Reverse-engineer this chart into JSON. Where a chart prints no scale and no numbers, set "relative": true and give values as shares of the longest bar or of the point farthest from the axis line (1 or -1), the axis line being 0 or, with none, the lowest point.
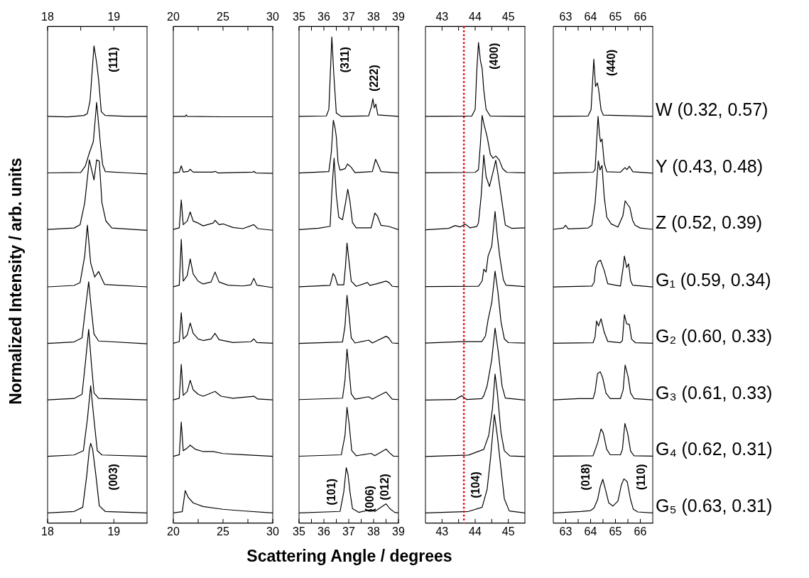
{
  "chart_data": [
    {
      "type": "line",
      "relative": true,
      "ylabel": "Normalized Intensity / arb. units",
      "xlim": [
        18,
        19.5
      ],
      "xticks": [
        18,
        {
          "value": 18.5,
          "label": null
        },
        19
      ],
      "x2lim": [
        18,
        19.5
      ],
      "x2ticks": [
        18,
        {
          "value": 18.5,
          "label": null
        },
        19
      ],
      "annotations": [
        "(111)",
        "(003)"
      ],
      "series": [
        {
          "color": "#000000",
          "x": [
            18,
            18.3,
            18.55,
            18.6,
            18.64,
            18.7,
            18.74,
            18.77,
            18.81,
            18.87,
            19.2,
            19.5
          ],
          "values": [
            0.849,
            0.848,
            0.851,
            0.855,
            0.882,
            1,
            0.964,
            0.927,
            0.859,
            0.851,
            0.849,
            0.849
          ]
        },
        {
          "color": "#000000",
          "x": [
            18,
            18.5,
            18.57,
            18.63,
            18.69,
            18.74,
            18.8,
            18.83,
            18.87,
            19.2,
            19.5
          ],
          "values": [
            0.728,
            0.729,
            0.743,
            0.771,
            0.795,
            0.879,
            0.785,
            0.746,
            0.731,
            0.728,
            0.726
          ]
        },
        {
          "color": "#000000",
          "x": [
            18,
            18.4,
            18.49,
            18.56,
            18.63,
            18.7,
            18.74,
            18.78,
            18.82,
            18.88,
            18.97,
            19.5
          ],
          "values": [
            0.607,
            0.61,
            0.617,
            0.664,
            0.756,
            0.713,
            0.756,
            0.753,
            0.664,
            0.625,
            0.61,
            0.605
          ]
        },
        {
          "color": "#000000",
          "x": [
            18,
            18.4,
            18.49,
            18.56,
            18.6,
            18.65,
            18.71,
            18.77,
            18.81,
            18.86,
            19.5
          ],
          "values": [
            0.484,
            0.487,
            0.493,
            0.55,
            0.616,
            0.535,
            0.505,
            0.517,
            0.504,
            0.489,
            0.484
          ]
        },
        {
          "color": "#000000",
          "x": [
            18,
            18.4,
            18.52,
            18.57,
            18.62,
            18.66,
            18.7,
            18.77,
            19.5
          ],
          "values": [
            0.363,
            0.366,
            0.375,
            0.436,
            0.495,
            0.436,
            0.383,
            0.368,
            0.362
          ]
        },
        {
          "color": "#000000",
          "x": [
            18,
            18.4,
            18.52,
            18.57,
            18.62,
            18.66,
            18.7,
            18.77,
            19.5
          ],
          "values": [
            0.242,
            0.245,
            0.254,
            0.321,
            0.393,
            0.321,
            0.257,
            0.245,
            0.242
          ]
        },
        {
          "color": "#000000",
          "x": [
            18,
            18.4,
            18.54,
            18.6,
            18.65,
            18.7,
            18.75,
            18.82,
            19.5
          ],
          "values": [
            0.121,
            0.124,
            0.133,
            0.2,
            0.272,
            0.2,
            0.133,
            0.124,
            0.121
          ]
        },
        {
          "color": "#000000",
          "x": [
            18,
            18.4,
            18.53,
            18.59,
            18.63,
            18.65,
            18.68,
            18.73,
            18.78,
            18.87,
            19.5
          ],
          "values": [
            0,
            0.003,
            0.012,
            0.079,
            0.136,
            0.149,
            0.136,
            0.079,
            0.015,
            0.003,
            0
          ]
        }
      ]
    },
    {
      "type": "line",
      "relative": true,
      "xlim": [
        20,
        30
      ],
      "xticks": [
        20,
        {
          "value": 22.5,
          "label": null
        },
        25,
        {
          "value": 27.5,
          "label": null
        },
        30
      ],
      "x2lim": [
        20,
        30
      ],
      "x2ticks": [
        20,
        {
          "value": 22.5,
          "label": null
        },
        25,
        {
          "value": 27.5,
          "label": null
        },
        30
      ],
      "series": [
        {
          "color": "#000000",
          "x": [
            20,
            21.2,
            21.3,
            21.4,
            25,
            30
          ],
          "values": [
            0.996,
            0.996,
            1,
            0.996,
            0.995,
            0.995
          ]
        },
        {
          "color": "#000000",
          "x": [
            20,
            20.6,
            20.8,
            21,
            21.5,
            21.7,
            22,
            24,
            24.2,
            24.5,
            28,
            28.1,
            28.3,
            30
          ],
          "values": [
            0.854,
            0.856,
            0.872,
            0.856,
            0.858,
            0.863,
            0.856,
            0.856,
            0.858,
            0.854,
            0.856,
            0.858,
            0.854,
            0.853
          ]
        },
        {
          "color": "#000000",
          "x": [
            20,
            20.6,
            20.8,
            21,
            21.4,
            21.7,
            22,
            22.5,
            23,
            24,
            24.2,
            24.6,
            25,
            26,
            27,
            28.1,
            28.5,
            30
          ],
          "values": [
            0.712,
            0.716,
            0.786,
            0.724,
            0.733,
            0.756,
            0.733,
            0.728,
            0.721,
            0.728,
            0.735,
            0.724,
            0.726,
            0.717,
            0.714,
            0.724,
            0.714,
            0.71
          ]
        },
        {
          "color": "#000000",
          "x": [
            20,
            20.6,
            20.8,
            21,
            21.4,
            21.7,
            22,
            22.5,
            23,
            23.8,
            24.2,
            24.6,
            25.5,
            27,
            27.8,
            28.1,
            28.4,
            30
          ],
          "values": [
            0.568,
            0.572,
            0.687,
            0.582,
            0.596,
            0.638,
            0.6,
            0.582,
            0.575,
            0.58,
            0.605,
            0.58,
            0.572,
            0.57,
            0.573,
            0.589,
            0.572,
            0.566
          ]
        },
        {
          "color": "#000000",
          "x": [
            20,
            20.6,
            20.8,
            21,
            21.4,
            21.7,
            22,
            22.5,
            23,
            23.8,
            24.2,
            24.6,
            26,
            27.8,
            28.1,
            28.4,
            30
          ],
          "values": [
            0.426,
            0.43,
            0.503,
            0.437,
            0.447,
            0.477,
            0.451,
            0.437,
            0.433,
            0.437,
            0.451,
            0.435,
            0.428,
            0.43,
            0.437,
            0.428,
            0.426
          ]
        },
        {
          "color": "#000000",
          "x": [
            20,
            20.6,
            20.8,
            21,
            21.4,
            21.7,
            22,
            22.5,
            23,
            24.2,
            24.8,
            26,
            28.1,
            28.5,
            30
          ],
          "values": [
            0.284,
            0.288,
            0.373,
            0.295,
            0.305,
            0.333,
            0.309,
            0.298,
            0.293,
            0.305,
            0.293,
            0.288,
            0.293,
            0.286,
            0.284
          ]
        },
        {
          "color": "#000000",
          "x": [
            20,
            20.6,
            20.8,
            21,
            21.4,
            21.7,
            22.2,
            23,
            24,
            25,
            27,
            30
          ],
          "values": [
            0.142,
            0.146,
            0.228,
            0.156,
            0.163,
            0.17,
            0.16,
            0.154,
            0.154,
            0.149,
            0.146,
            0.142
          ]
        },
        {
          "color": "#000000",
          "x": [
            20,
            20.9,
            21.2,
            21.5,
            22,
            23,
            25,
            27,
            30
          ],
          "values": [
            0,
            0.003,
            0.056,
            0.039,
            0.025,
            0.016,
            0.009,
            0.005,
            0
          ]
        }
      ]
    },
    {
      "type": "line",
      "relative": true,
      "xlabel": "Scattering Angle / degrees",
      "xlim": [
        35,
        39
      ],
      "xticks": [
        35,
        {
          "value": 35.5,
          "label": null
        },
        36,
        {
          "value": 36.5,
          "label": null
        },
        37,
        {
          "value": 37.5,
          "label": null
        },
        38,
        {
          "value": 38.5,
          "label": null
        },
        39
      ],
      "x2lim": [
        35,
        39
      ],
      "x2ticks": [
        35,
        {
          "value": 35.5,
          "label": null
        },
        36,
        {
          "value": 36.5,
          "label": null
        },
        37,
        {
          "value": 37.5,
          "label": null
        },
        38,
        {
          "value": 38.5,
          "label": null
        },
        39
      ],
      "annotations": [
        "(311)",
        "(222)",
        "(101)",
        "(006)",
        "(012)"
      ],
      "series": [
        {
          "color": "#000000",
          "x": [
            35,
            36.1,
            36.2,
            36.32,
            36.4,
            36.5,
            36.7,
            37.8,
            37.92,
            37.97,
            38.03,
            38.09,
            38.17,
            39
          ],
          "values": [
            0.833,
            0.834,
            0.848,
            1,
            0.921,
            0.84,
            0.833,
            0.834,
            0.855,
            0.87,
            0.851,
            0.859,
            0.836,
            0.833
          ]
        },
        {
          "color": "#000000",
          "x": [
            35,
            36.2,
            36.3,
            36.38,
            36.45,
            36.5,
            36.57,
            36.65,
            36.85,
            36.95,
            37.1,
            37.25,
            37.95,
            38.08,
            38.2,
            38.3,
            39
          ],
          "values": [
            0.714,
            0.717,
            0.758,
            0.825,
            0.809,
            0.79,
            0.736,
            0.72,
            0.723,
            0.733,
            0.726,
            0.715,
            0.717,
            0.743,
            0.729,
            0.717,
            0.714
          ]
        },
        {
          "color": "#000000",
          "x": [
            35,
            35.8,
            36.25,
            36.33,
            36.41,
            36.5,
            36.6,
            36.75,
            36.88,
            36.96,
            37.05,
            37.15,
            37.3,
            37.9,
            38.05,
            38.15,
            38.3,
            38.6,
            39
          ],
          "values": [
            0.595,
            0.598,
            0.602,
            0.683,
            0.745,
            0.668,
            0.621,
            0.616,
            0.654,
            0.68,
            0.654,
            0.61,
            0.599,
            0.599,
            0.63,
            0.624,
            0.604,
            0.602,
            0.595
          ]
        },
        {
          "color": "#000000",
          "x": [
            35,
            36.25,
            36.37,
            36.45,
            36.55,
            36.8,
            36.87,
            36.93,
            37.0,
            37.1,
            37.3,
            37.75,
            37.85,
            38.1,
            38.5,
            38.62,
            38.75,
            39
          ],
          "values": [
            0.475,
            0.478,
            0.503,
            0.497,
            0.479,
            0.479,
            0.519,
            0.567,
            0.534,
            0.487,
            0.476,
            0.484,
            0.478,
            0.481,
            0.487,
            0.484,
            0.476,
            0.475
          ]
        },
        {
          "color": "#000000",
          "x": [
            35,
            36.75,
            36.85,
            36.93,
            37.0,
            37.1,
            37.25,
            37.8,
            37.95,
            38.5,
            38.6,
            38.75,
            39
          ],
          "values": [
            0.356,
            0.359,
            0.393,
            0.457,
            0.422,
            0.368,
            0.357,
            0.363,
            0.357,
            0.371,
            0.368,
            0.357,
            0.356
          ]
        },
        {
          "color": "#000000",
          "x": [
            35,
            36.75,
            36.85,
            36.93,
            37.0,
            37.1,
            37.25,
            37.8,
            37.95,
            38.5,
            38.6,
            38.75,
            39
          ],
          "values": [
            0.238,
            0.241,
            0.279,
            0.344,
            0.307,
            0.25,
            0.239,
            0.244,
            0.239,
            0.254,
            0.248,
            0.239,
            0.238
          ]
        },
        {
          "color": "#000000",
          "x": [
            35,
            36.7,
            36.85,
            36.93,
            37.02,
            37.12,
            37.3,
            37.9,
            38.05,
            38.5,
            38.65,
            38.8,
            39
          ],
          "values": [
            0.119,
            0.122,
            0.163,
            0.222,
            0.185,
            0.131,
            0.12,
            0.125,
            0.12,
            0.134,
            0.126,
            0.119,
            0.119
          ]
        },
        {
          "color": "#000000",
          "x": [
            35,
            36.65,
            36.8,
            36.9,
            36.97,
            37.05,
            37.15,
            37.4,
            37.9,
            38.05,
            38.5,
            38.65,
            38.85,
            39
          ],
          "values": [
            0,
            0.003,
            0.044,
            0.095,
            0.081,
            0.044,
            0.009,
            0.001,
            0.007,
            0.003,
            0.019,
            0.009,
            0.001,
            0
          ]
        }
      ]
    },
    {
      "type": "line",
      "relative": true,
      "xlim": [
        42.5,
        45.5
      ],
      "xticks": [
        43,
        {
          "value": 43.5,
          "label": null
        },
        44,
        {
          "value": 44.5,
          "label": null
        },
        45
      ],
      "x2lim": [
        42.5,
        45.5
      ],
      "x2ticks": [
        43,
        {
          "value": 43.5,
          "label": null
        },
        44,
        {
          "value": 44.5,
          "label": null
        },
        45
      ],
      "ref_lines": [
        {
          "axis": "x",
          "value": 43.66,
          "color": "#e00000",
          "line_style": "dotted"
        }
      ],
      "annotations": [
        "(400)",
        "(104)"
      ],
      "series": [
        {
          "color": "#000000",
          "x": [
            42.5,
            43.9,
            44.0,
            44.05,
            44.1,
            44.16,
            44.21,
            44.26,
            44.33,
            44.45,
            45.5
          ],
          "values": [
            0.843,
            0.844,
            0.858,
            0.942,
            1,
            0.961,
            0.945,
            0.899,
            0.858,
            0.844,
            0.843
          ]
        },
        {
          "color": "#000000",
          "x": [
            42.5,
            44.0,
            44.1,
            44.16,
            44.21,
            44.26,
            44.36,
            44.46,
            44.54,
            44.62,
            44.72,
            44.83,
            44.95,
            45.5
          ],
          "values": [
            0.723,
            0.724,
            0.73,
            0.787,
            0.845,
            0.828,
            0.8,
            0.762,
            0.754,
            0.759,
            0.751,
            0.732,
            0.724,
            0.723
          ]
        },
        {
          "color": "#000000",
          "x": [
            42.5,
            43.2,
            43.4,
            43.55,
            43.7,
            43.85,
            44.05,
            44.1,
            44.18,
            44.26,
            44.33,
            44.43,
            44.54,
            44.62,
            44.7,
            44.83,
            44.91,
            45.1,
            45.5
          ],
          "values": [
            0.602,
            0.605,
            0.611,
            0.608,
            0.614,
            0.606,
            0.609,
            0.617,
            0.673,
            0.761,
            0.715,
            0.694,
            0.725,
            0.75,
            0.715,
            0.651,
            0.612,
            0.605,
            0.606
          ]
        },
        {
          "color": "#000000",
          "x": [
            42.5,
            44.1,
            44.21,
            44.26,
            44.33,
            44.39,
            44.5,
            44.6,
            44.67,
            44.74,
            44.85,
            44.93,
            45.5
          ],
          "values": [
            0.481,
            0.482,
            0.493,
            0.518,
            0.512,
            0.546,
            0.567,
            0.641,
            0.588,
            0.546,
            0.496,
            0.484,
            0.481
          ]
        },
        {
          "color": "#000000",
          "x": [
            42.5,
            43.6,
            44.2,
            44.31,
            44.39,
            44.5,
            44.6,
            44.69,
            44.78,
            44.88,
            45.0,
            45.5
          ],
          "values": [
            0.361,
            0.364,
            0.364,
            0.376,
            0.411,
            0.447,
            0.514,
            0.468,
            0.406,
            0.37,
            0.362,
            0.361
          ]
        },
        {
          "color": "#000000",
          "x": [
            42.5,
            43.4,
            43.59,
            43.75,
            44.2,
            44.26,
            44.36,
            44.5,
            44.6,
            44.7,
            44.81,
            44.91,
            45.5
          ],
          "values": [
            0.24,
            0.241,
            0.249,
            0.241,
            0.243,
            0.249,
            0.27,
            0.326,
            0.393,
            0.341,
            0.27,
            0.244,
            0.24
          ]
        },
        {
          "color": "#000000",
          "x": [
            42.5,
            43.8,
            44.26,
            44.41,
            44.52,
            44.6,
            44.67,
            44.78,
            44.88,
            45.05,
            45.5
          ],
          "values": [
            0.12,
            0.123,
            0.135,
            0.165,
            0.221,
            0.295,
            0.255,
            0.17,
            0.132,
            0.121,
            0.12
          ]
        },
        {
          "color": "#000000",
          "x": [
            42.5,
            43.8,
            44.21,
            44.36,
            44.46,
            44.58,
            44.67,
            44.78,
            44.88,
            45.03,
            45.5
          ],
          "values": [
            0,
            0.003,
            0.012,
            0.05,
            0.114,
            0.209,
            0.163,
            0.093,
            0.03,
            0.004,
            0
          ]
        }
      ]
    },
    {
      "type": "line",
      "relative": true,
      "xlim": [
        62.5,
        66.5
      ],
      "xticks": [
        63,
        {
          "value": 63.5,
          "label": null
        },
        64,
        {
          "value": 64.5,
          "label": null
        },
        65,
        {
          "value": 65.5,
          "label": null
        },
        66
      ],
      "x2lim": [
        62.5,
        66.5
      ],
      "x2ticks": [
        63,
        {
          "value": 63.5,
          "label": null
        },
        64,
        {
          "value": 64.5,
          "label": null
        },
        65,
        {
          "value": 65.5,
          "label": null
        },
        66
      ],
      "annotations": [
        "(440)",
        "(018)",
        "(110)"
      ],
      "series": [
        {
          "name": "W (0.32, 0.57)",
          "color": "#000000",
          "x": [
            62.5,
            63.9,
            64.02,
            64.08,
            64.13,
            64.2,
            64.27,
            64.32,
            64.42,
            64.51,
            66.5
          ],
          "values": [
            0.874,
            0.875,
            0.889,
            0.951,
            1,
            0.94,
            0.948,
            0.935,
            0.889,
            0.877,
            0.874
          ]
        },
        {
          "name": "Y (0.43, 0.48)",
          "color": "#000000",
          "x": [
            62.5,
            64.1,
            64.18,
            64.24,
            64.3,
            64.36,
            64.4,
            64.46,
            64.55,
            64.65,
            65.2,
            65.38,
            65.47,
            65.56,
            65.7,
            66.5
          ],
          "values": [
            0.749,
            0.751,
            0.757,
            0.815,
            0.874,
            0.834,
            0.818,
            0.824,
            0.771,
            0.752,
            0.751,
            0.761,
            0.757,
            0.764,
            0.752,
            0.749
          ]
        },
        {
          "name": "Z (0.52, 0.39)",
          "color": "#000000",
          "x": [
            62.5,
            62.9,
            63.0,
            63.1,
            63.9,
            64.05,
            64.18,
            64.31,
            64.38,
            64.46,
            64.55,
            64.65,
            64.83,
            65.1,
            65.3,
            65.39,
            65.5,
            65.58,
            65.69,
            65.79,
            66.0,
            66.5
          ],
          "values": [
            0.625,
            0.628,
            0.634,
            0.626,
            0.628,
            0.634,
            0.682,
            0.776,
            0.756,
            0.766,
            0.696,
            0.652,
            0.637,
            0.63,
            0.655,
            0.688,
            0.679,
            0.673,
            0.645,
            0.634,
            0.628,
            0.625
          ]
        },
        {
          "name": "G₁ (0.59, 0.34)",
          "color": "#000000",
          "x": [
            62.5,
            64.05,
            64.14,
            64.21,
            64.3,
            64.4,
            64.55,
            64.69,
            65.2,
            65.31,
            65.36,
            65.45,
            65.53,
            65.61,
            65.69,
            66.5
          ],
          "values": [
            0.498,
            0.5,
            0.508,
            0.541,
            0.554,
            0.557,
            0.534,
            0.505,
            0.5,
            0.541,
            0.566,
            0.541,
            0.549,
            0.512,
            0.502,
            0.498
          ]
        },
        {
          "name": "G₂ (0.60, 0.33)",
          "color": "#000000",
          "x": [
            62.5,
            64.1,
            64.18,
            64.24,
            64.32,
            64.42,
            64.55,
            64.69,
            65.2,
            65.28,
            65.36,
            65.45,
            65.56,
            65.65,
            65.8,
            66.5
          ],
          "values": [
            0.374,
            0.375,
            0.388,
            0.423,
            0.412,
            0.428,
            0.398,
            0.378,
            0.375,
            0.38,
            0.437,
            0.417,
            0.415,
            0.383,
            0.375,
            0.374
          ]
        },
        {
          "name": "G₃ (0.61, 0.33)",
          "color": "#000000",
          "x": [
            62.5,
            63.5,
            64.1,
            64.18,
            64.28,
            64.39,
            64.49,
            64.62,
            64.79,
            65.2,
            65.31,
            65.39,
            65.51,
            65.61,
            65.75,
            66.5
          ],
          "values": [
            0.249,
            0.252,
            0.252,
            0.267,
            0.307,
            0.311,
            0.297,
            0.264,
            0.252,
            0.252,
            0.271,
            0.326,
            0.3,
            0.264,
            0.252,
            0.249
          ]
        },
        {
          "name": "G₄ (0.62, 0.31)",
          "color": "#000000",
          "x": [
            62.5,
            64.1,
            64.28,
            64.42,
            64.51,
            64.65,
            64.79,
            65.2,
            65.28,
            65.38,
            65.49,
            65.61,
            65.75,
            66.5
          ],
          "values": [
            0.125,
            0.126,
            0.154,
            0.185,
            0.176,
            0.14,
            0.128,
            0.128,
            0.14,
            0.197,
            0.176,
            0.136,
            0.126,
            0.125
          ]
        },
        {
          "name": "G₅ (0.63, 0.31)",
          "color": "#000000",
          "x": [
            62.5,
            63.6,
            64.0,
            64.14,
            64.28,
            64.39,
            64.49,
            64.6,
            64.73,
            64.9,
            65.1,
            65.24,
            65.34,
            65.47,
            65.61,
            65.72,
            65.9,
            66.5
          ],
          "values": [
            0,
            0.003,
            0.005,
            0.011,
            0.029,
            0.058,
            0.074,
            0.051,
            0.022,
            0.015,
            0.026,
            0.062,
            0.075,
            0.069,
            0.029,
            0.008,
            0.002,
            0
          ]
        }
      ]
    }
  ]
}
